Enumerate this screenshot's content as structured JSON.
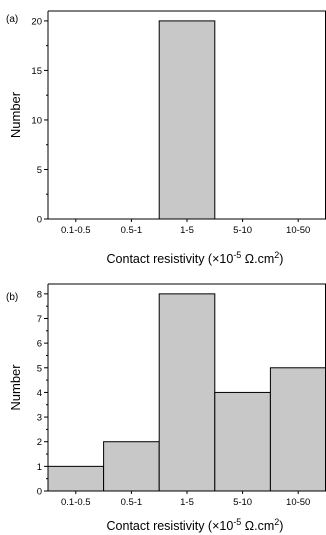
{
  "chart_data": [
    {
      "type": "bar",
      "panel_label": "(a)",
      "categories": [
        "0.1-0.5",
        "0.5-1",
        "1-5",
        "5-10",
        "10-50"
      ],
      "values": [
        0,
        0,
        20,
        0,
        0
      ],
      "ylabel": "Number",
      "xlabel": {
        "prefix": "Contact resistivity (×10",
        "exponent": "-5",
        "unit": " Ω.cm",
        "unit_exponent": "2",
        "suffix": ")"
      },
      "ylim": [
        0,
        21
      ],
      "yticks": [
        0,
        5,
        10,
        15,
        20
      ],
      "bar_color": "#c8c8c8",
      "grid": false
    },
    {
      "type": "bar",
      "panel_label": "(b)",
      "categories": [
        "0.1-0.5",
        "0.5-1",
        "1-5",
        "5-10",
        "10-50"
      ],
      "values": [
        1,
        2,
        8,
        4,
        5
      ],
      "ylabel": "Number",
      "xlabel": {
        "prefix": "Contact resistivity (×10",
        "exponent": "-5",
        "unit": " Ω.cm",
        "unit_exponent": "2",
        "suffix": ")"
      },
      "ylim": [
        0,
        8.4
      ],
      "yticks": [
        0,
        1,
        2,
        3,
        4,
        5,
        6,
        7,
        8
      ],
      "bar_color": "#c8c8c8",
      "grid": false
    }
  ]
}
